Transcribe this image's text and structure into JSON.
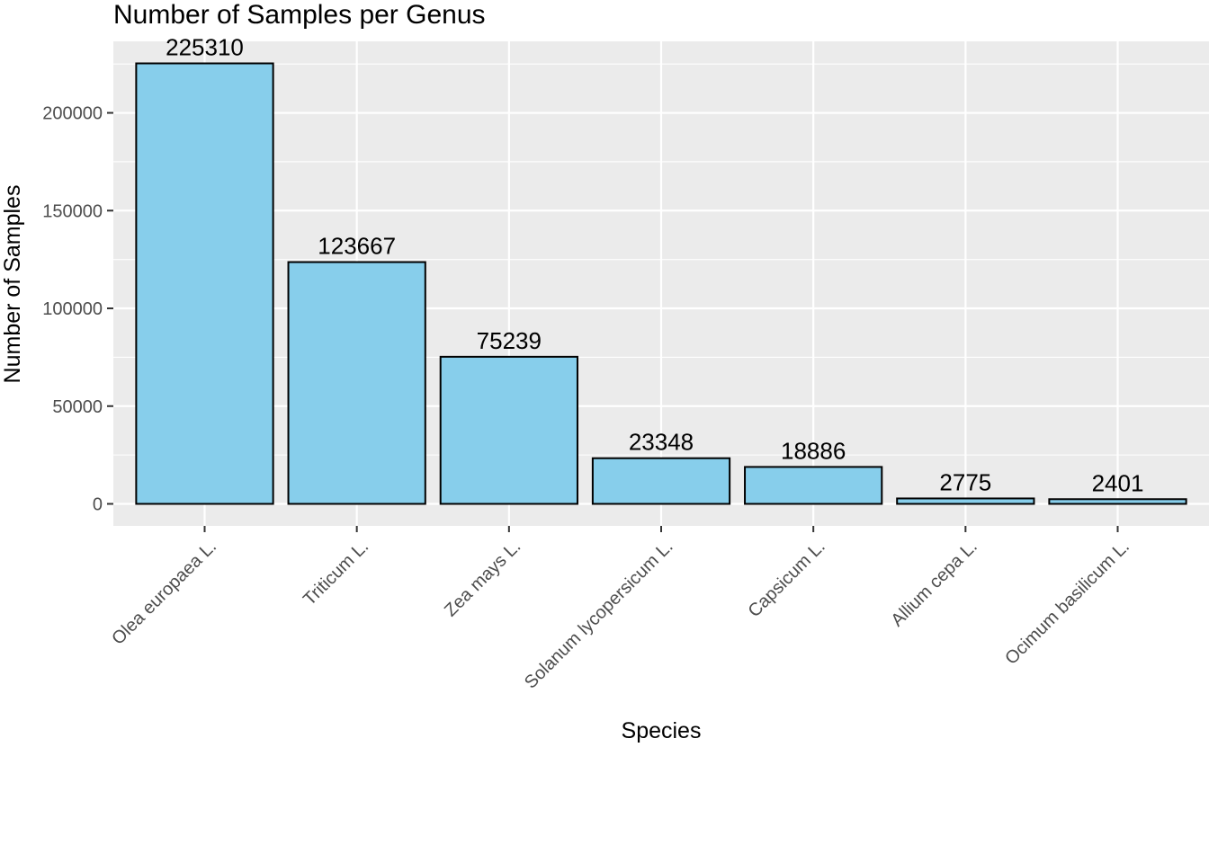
{
  "chart_data": {
    "type": "bar",
    "title": "Number of Samples per Genus",
    "xlabel": "Species",
    "ylabel": "Number of Samples",
    "categories": [
      "Olea europaea L.",
      "Triticum L.",
      "Zea mays L.",
      "Solanum lycopersicum L.",
      "Capsicum L.",
      "Allium cepa L.",
      "Ocimum basilicum L."
    ],
    "values": [
      225310,
      123667,
      75239,
      23348,
      18886,
      2775,
      2401
    ],
    "data_labels": [
      "225310",
      "123667",
      "75239",
      "23348",
      "18886",
      "2775",
      "2401"
    ],
    "y_ticks": [
      0,
      50000,
      100000,
      150000,
      200000
    ],
    "y_tick_labels": [
      "0",
      "50000",
      "100000",
      "150000",
      "200000"
    ],
    "ylim": [
      -11266,
      236576
    ],
    "grid": true,
    "x_tick_label_rotation": 45,
    "colors": {
      "bar_fill": "#87CEEB",
      "bar_stroke": "#000000",
      "panel_background": "#EBEBEB",
      "gridline": "#FFFFFF"
    }
  }
}
